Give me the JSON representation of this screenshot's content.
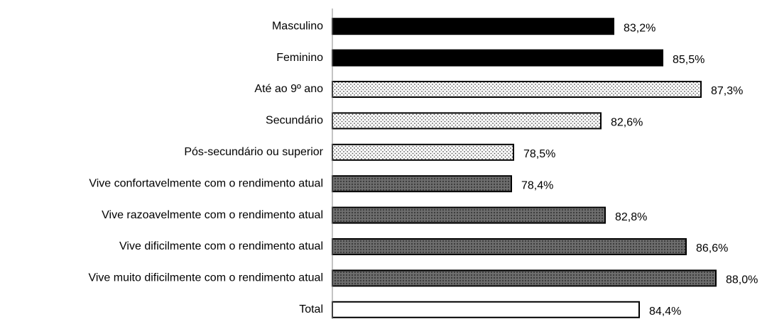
{
  "chart_data": {
    "type": "barh",
    "categories": [
      "Masculino",
      "Feminino",
      "Até ao 9º ano",
      "Secundário",
      "Pós-secundário ou superior",
      "Vive confortavelmente com o rendimento atual",
      "Vive razoavelmente com o rendimento atual",
      "Vive dificilmente com o rendimento atual",
      "Vive muito dificilmente com o rendimento atual",
      "Total"
    ],
    "values": [
      83.2,
      85.5,
      87.3,
      82.6,
      78.5,
      78.4,
      82.8,
      86.6,
      88.0,
      84.4
    ],
    "value_labels": [
      "83,2%",
      "85,5%",
      "87,3%",
      "82,6%",
      "78,5%",
      "78,4%",
      "82,8%",
      "86,6%",
      "88,0%",
      "84,4%"
    ],
    "bar_styles": [
      "solid",
      "solid",
      "dotted",
      "dotted",
      "dotted",
      "hatched",
      "hatched",
      "hatched",
      "hatched",
      "white"
    ],
    "xlim": [
      70,
      90
    ]
  }
}
